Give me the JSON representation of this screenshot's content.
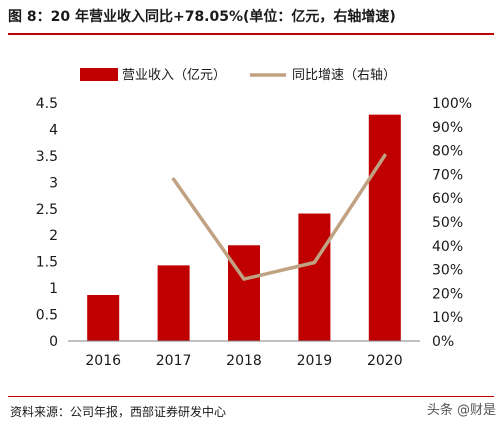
{
  "title": "图 8：20 年营业收入同比+78.05%(单位：亿元，右轴增速)",
  "source": "资料来源：公司年报，西部证券研发中心",
  "watermark": "头条 @财是",
  "colors": {
    "bar": "#c00000",
    "line": "#c0a283",
    "rule": "#c00000",
    "axis": "#808080"
  },
  "chart_data": {
    "type": "bar",
    "categories": [
      "2016",
      "2017",
      "2018",
      "2019",
      "2020"
    ],
    "series": [
      {
        "name": "营业收入（亿元）",
        "type": "bar",
        "axis": "left",
        "values": [
          0.87,
          1.43,
          1.81,
          2.41,
          4.28
        ]
      },
      {
        "name": "同比增速（右轴）",
        "type": "line",
        "axis": "right",
        "values": [
          null,
          0.68,
          0.26,
          0.33,
          0.78
        ]
      }
    ],
    "y_left": {
      "min": 0,
      "max": 4.5,
      "step": 0.5,
      "tick_labels": [
        "0",
        "0.5",
        "1",
        "1.5",
        "2",
        "2.5",
        "3",
        "3.5",
        "4",
        "4.5"
      ]
    },
    "y_right": {
      "min": 0,
      "max": 1,
      "step": 0.1,
      "tick_labels": [
        "0%",
        "10%",
        "20%",
        "30%",
        "40%",
        "50%",
        "60%",
        "70%",
        "80%",
        "90%",
        "100%"
      ]
    },
    "legend": "top",
    "grid": false
  }
}
